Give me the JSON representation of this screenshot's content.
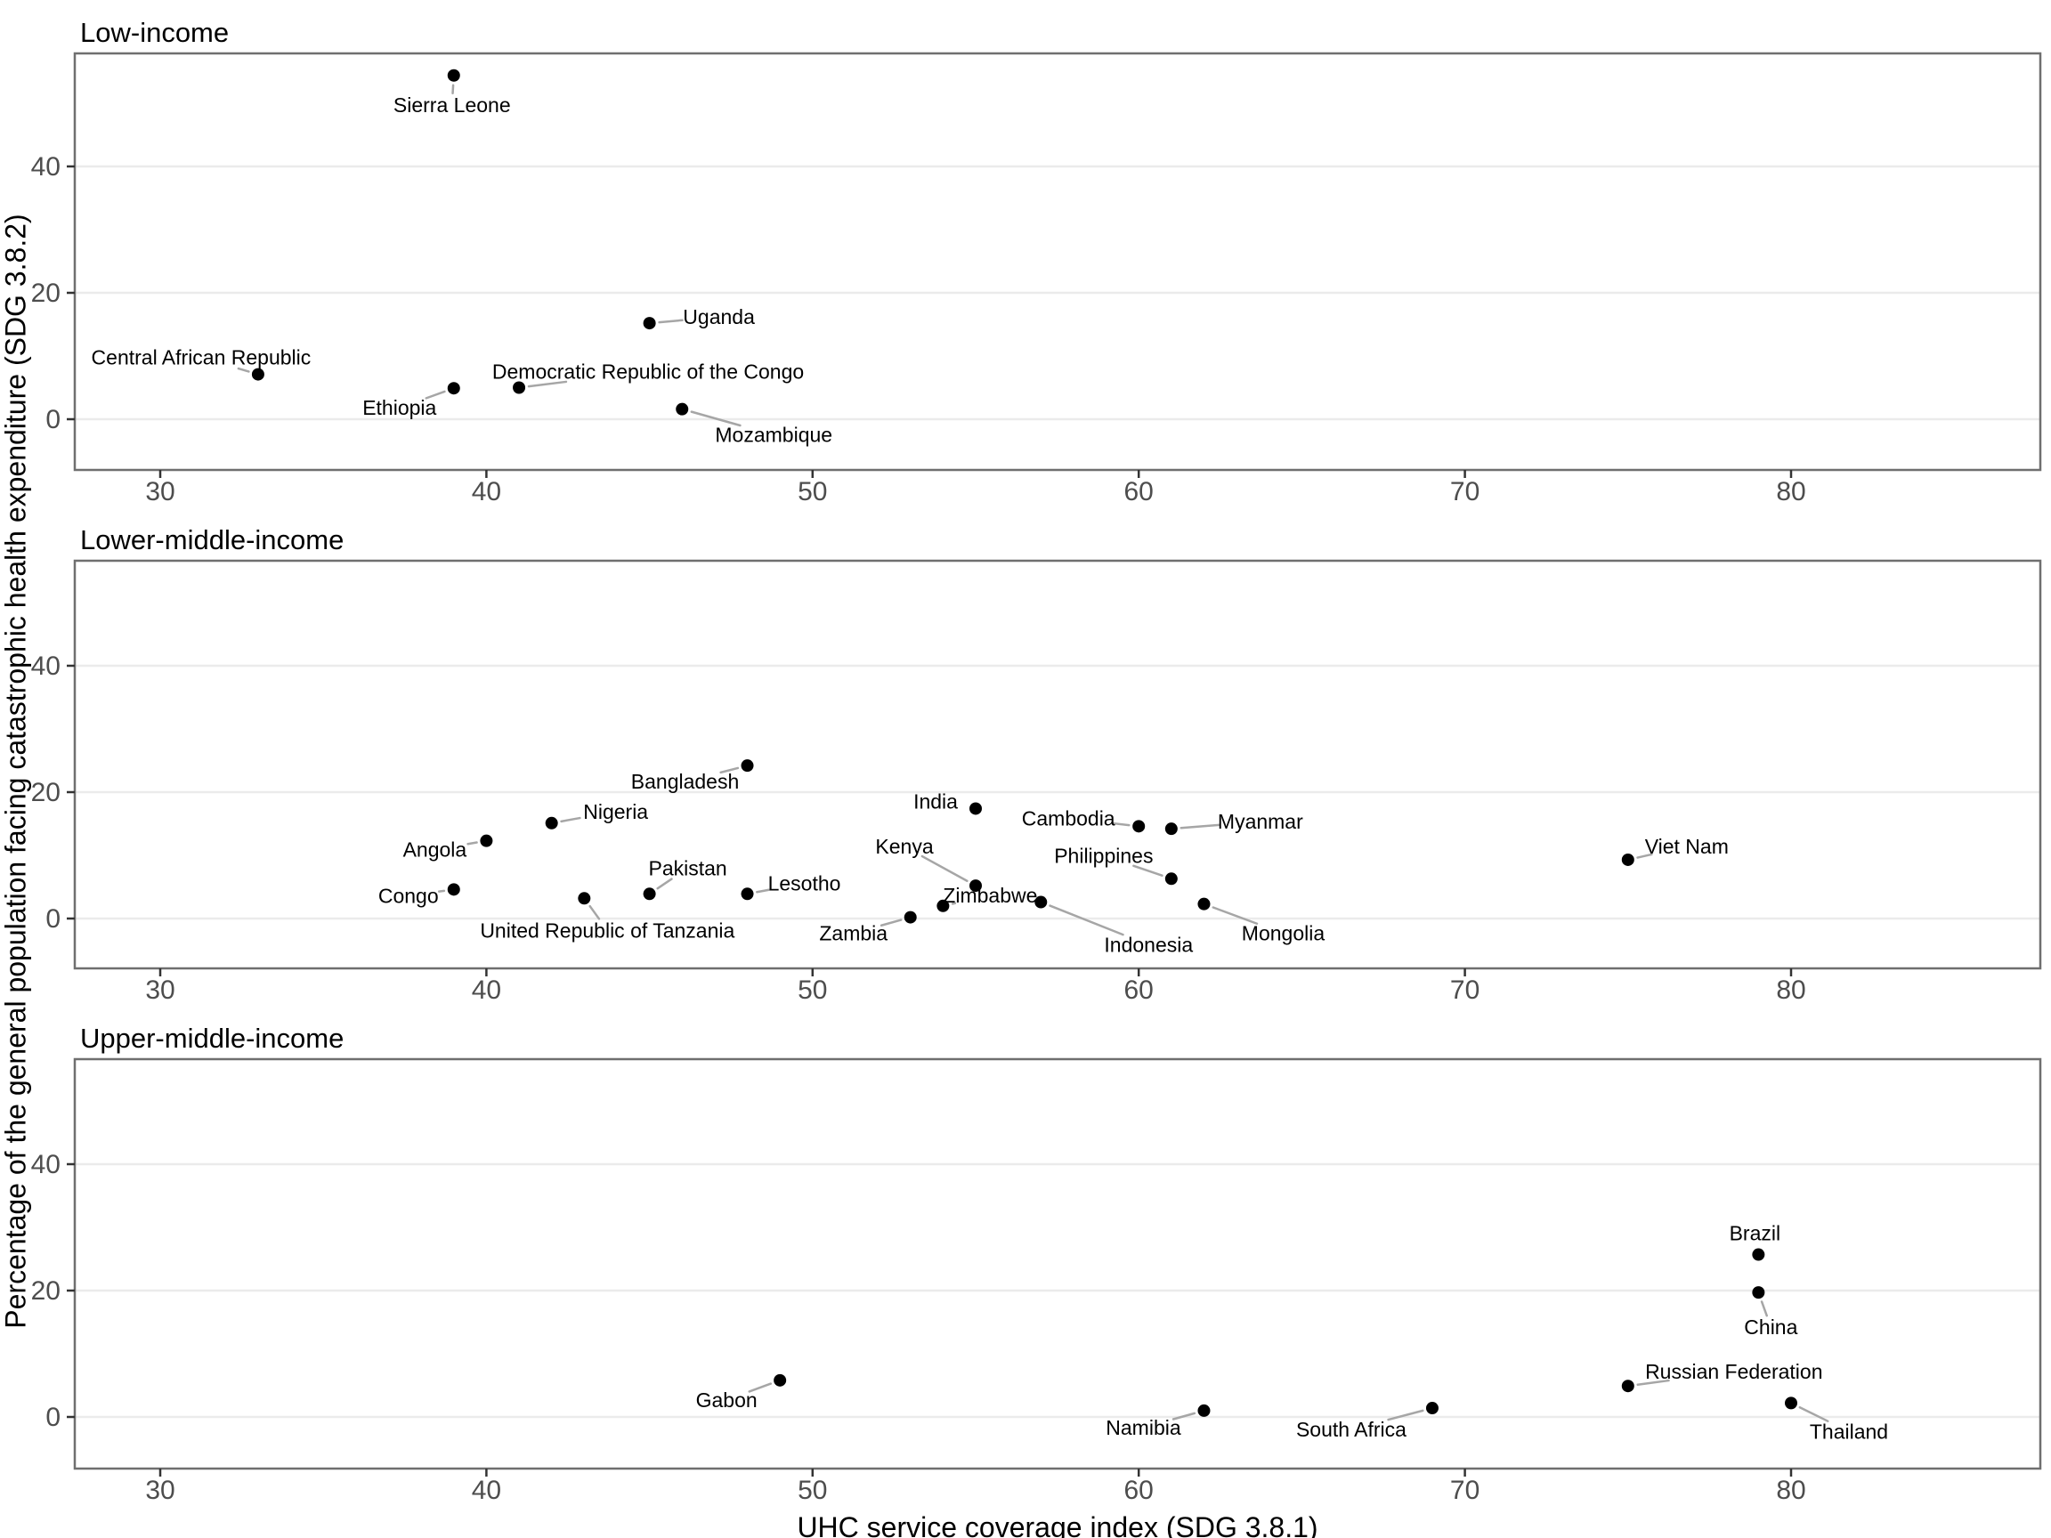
{
  "figure": {
    "xlabel": "UHC service coverage index (SDG 3.8.1)",
    "ylabel": "Percentage of the general population facing catastrophic health expenditure (SDG 3.8.2)"
  },
  "chart_data": {
    "type": "scatter",
    "title": "",
    "xlabel": "UHC service coverage index (SDG 3.8.1)",
    "ylabel": "Percentage of the general population facing catastrophic health expenditure (SDG 3.8.2)",
    "x_ticks": [
      30,
      40,
      50,
      60,
      70,
      80
    ],
    "y_ticks": [
      0,
      20,
      40
    ],
    "xlim": [
      27.4,
      87.7
    ],
    "ylim": [
      -8,
      58
    ],
    "grid": "horizontal-only",
    "legend": "none",
    "point_style": {
      "shape": "circle",
      "radius_px": 7,
      "color": "#000000"
    },
    "colors": {
      "point": "#000000",
      "label_text": "#000000",
      "leader_line": "#a6a6a6",
      "gridline": "#ebebeb",
      "panel_border": "#6f6f6f",
      "tick_mark": "#333333",
      "tick_label": "#4d4d4d",
      "background": "#ffffff"
    },
    "facets": [
      {
        "title": "Low-income",
        "points": [
          {
            "country": "Central African Republic",
            "x": 33,
            "y": 7.1,
            "lx": -64,
            "ly": -19
          },
          {
            "country": "Ethiopia",
            "x": 39,
            "y": 4.9,
            "lx": -61,
            "ly": 22
          },
          {
            "country": "Sierra Leone",
            "x": 39,
            "y": 54.4,
            "lx": -2,
            "ly": 33
          },
          {
            "country": "Democratic Republic of the Congo",
            "x": 41,
            "y": 5.0,
            "lx": 145,
            "ly": -18
          },
          {
            "country": "Uganda",
            "x": 45,
            "y": 15.2,
            "lx": 78,
            "ly": -7
          },
          {
            "country": "Mozambique",
            "x": 46,
            "y": 1.6,
            "lx": 103,
            "ly": 29
          }
        ]
      },
      {
        "title": "Lower-middle-income",
        "points": [
          {
            "country": "Congo",
            "x": 39,
            "y": 4.6,
            "lx": -51,
            "ly": 7
          },
          {
            "country": "Angola",
            "x": 40,
            "y": 12.3,
            "lx": -58,
            "ly": 10
          },
          {
            "country": "Nigeria",
            "x": 42,
            "y": 15.1,
            "lx": 72,
            "ly": -13
          },
          {
            "country": "United Republic of Tanzania",
            "x": 43,
            "y": 3.2,
            "lx": 26,
            "ly": 36
          },
          {
            "country": "Pakistan",
            "x": 45,
            "y": 3.9,
            "lx": 43,
            "ly": -29
          },
          {
            "country": "Bangladesh",
            "x": 48,
            "y": 24.2,
            "lx": -70,
            "ly": 18
          },
          {
            "country": "Lesotho",
            "x": 48,
            "y": 3.9,
            "lx": 64,
            "ly": -12
          },
          {
            "country": "Zambia",
            "x": 53,
            "y": 0.2,
            "lx": -64,
            "ly": 18
          },
          {
            "country": "Zimbabwe",
            "x": 54,
            "y": 2.0,
            "lx": 53,
            "ly": -12
          },
          {
            "country": "India",
            "x": 55,
            "y": 17.4,
            "lx": -45,
            "ly": -8
          },
          {
            "country": "Kenya",
            "x": 55,
            "y": 5.2,
            "lx": -80,
            "ly": -44
          },
          {
            "country": "Indonesia",
            "x": 57,
            "y": 2.6,
            "lx": 121,
            "ly": 48
          },
          {
            "country": "Cambodia",
            "x": 60,
            "y": 14.6,
            "lx": -79,
            "ly": -9
          },
          {
            "country": "Myanmar",
            "x": 61,
            "y": 14.2,
            "lx": 100,
            "ly": -8
          },
          {
            "country": "Philippines",
            "x": 61,
            "y": 6.3,
            "lx": -76,
            "ly": -26
          },
          {
            "country": "Mongolia",
            "x": 62,
            "y": 2.3,
            "lx": 89,
            "ly": 33
          },
          {
            "country": "Viet Nam",
            "x": 75,
            "y": 9.3,
            "lx": 66,
            "ly": -15
          }
        ]
      },
      {
        "title": "Upper-middle-income",
        "points": [
          {
            "country": "Gabon",
            "x": 49,
            "y": 5.8,
            "lx": -60,
            "ly": 22
          },
          {
            "country": "Namibia",
            "x": 62,
            "y": 1.0,
            "lx": -68,
            "ly": 19
          },
          {
            "country": "South Africa",
            "x": 69,
            "y": 1.4,
            "lx": -91,
            "ly": 24
          },
          {
            "country": "Russian Federation",
            "x": 75,
            "y": 4.9,
            "lx": 119,
            "ly": -16
          },
          {
            "country": "Brazil",
            "x": 79,
            "y": 25.7,
            "lx": -4,
            "ly": -24
          },
          {
            "country": "China",
            "x": 79,
            "y": 19.7,
            "lx": 14,
            "ly": 39
          },
          {
            "country": "Thailand",
            "x": 80,
            "y": 2.2,
            "lx": 65,
            "ly": 32
          }
        ]
      }
    ]
  }
}
